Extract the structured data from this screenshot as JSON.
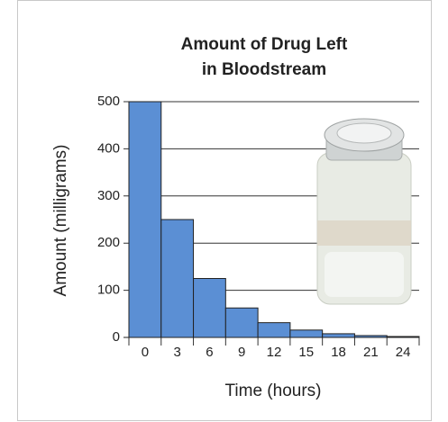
{
  "chart_data": {
    "type": "bar",
    "title": [
      "Amount of Drug Left",
      "in Bloodstream"
    ],
    "x_label": "Time (hours)",
    "y_label": "Amount (milligrams)",
    "categories": [
      "0",
      "3",
      "6",
      "9",
      "12",
      "15",
      "18",
      "21",
      "24"
    ],
    "values": [
      500,
      250,
      125,
      62.5,
      31.25,
      15.625,
      7.8125,
      3.90625,
      1.953125
    ],
    "color": "#5b8fd4",
    "ylim": [
      0,
      500
    ],
    "yticks": [
      0,
      100,
      200,
      300,
      400,
      500
    ],
    "grid": true
  }
}
